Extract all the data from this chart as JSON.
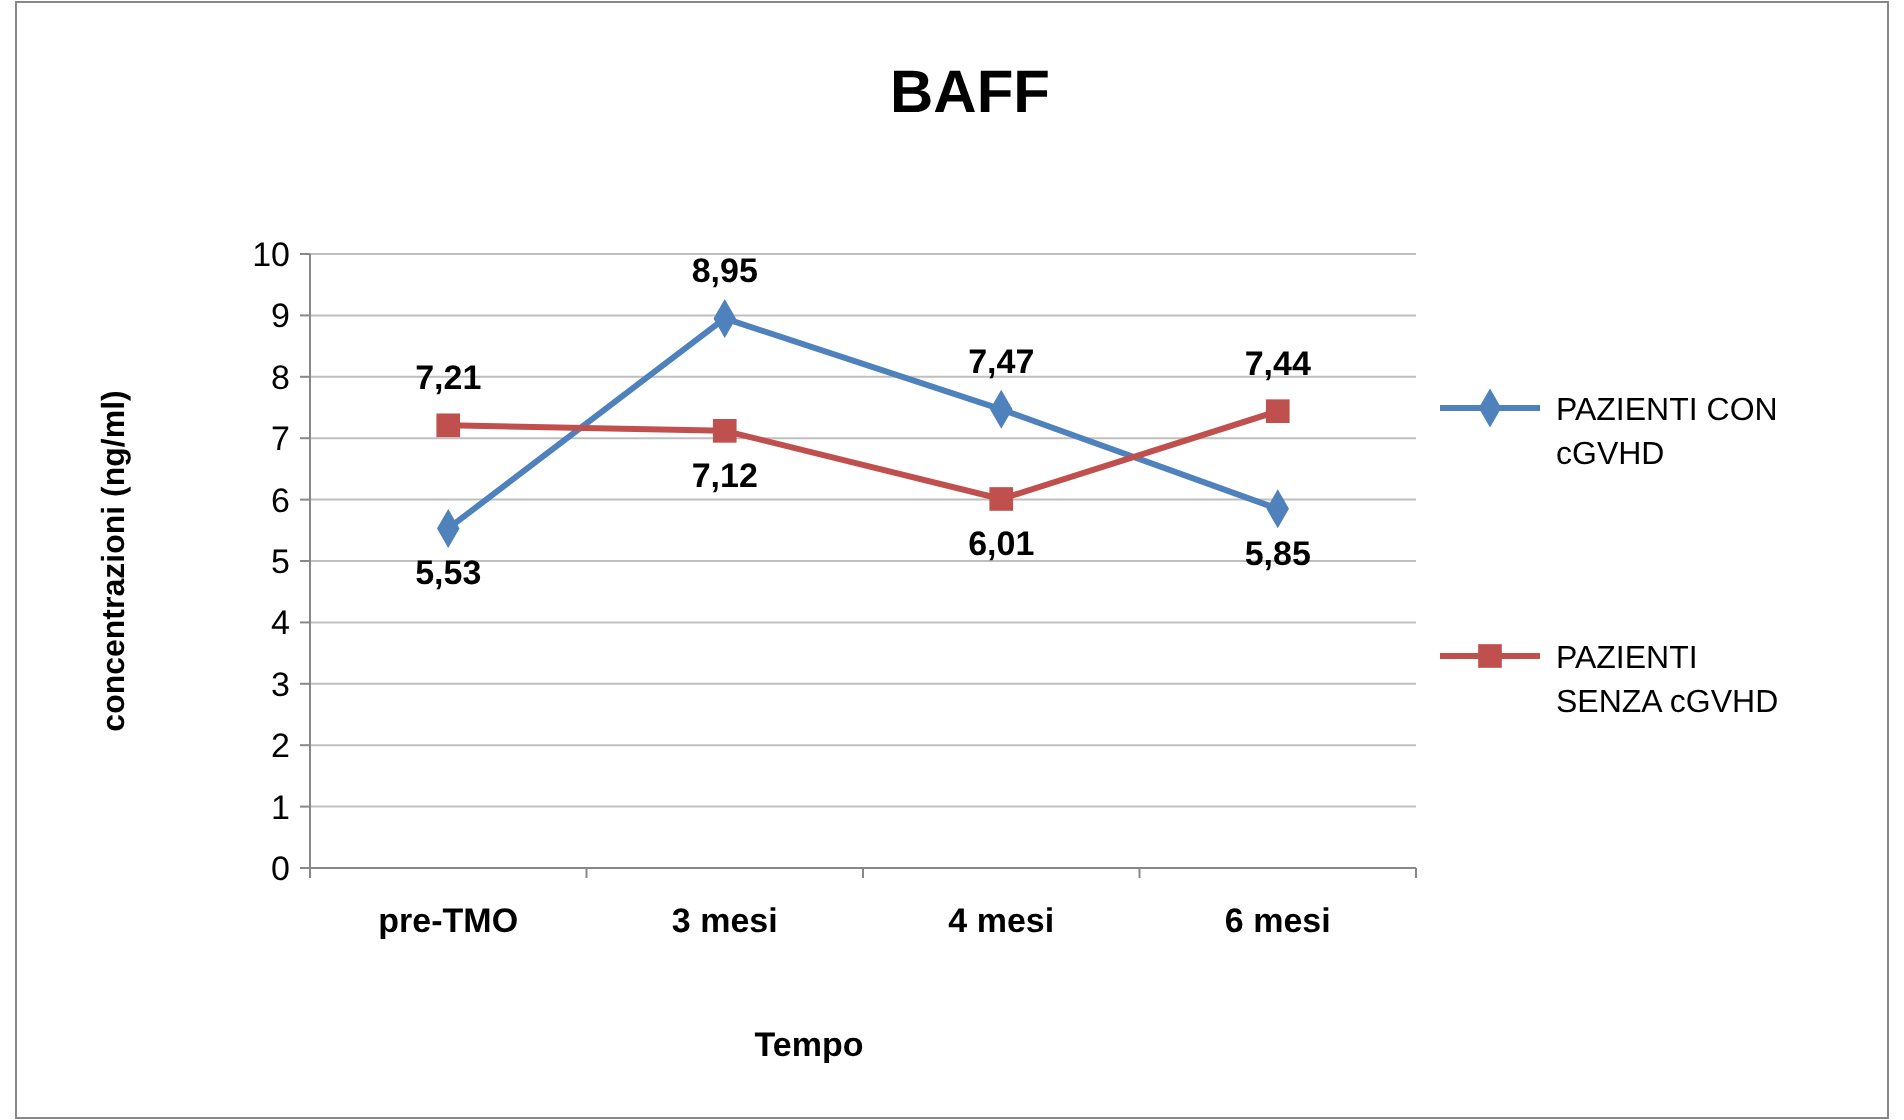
{
  "chart_data": {
    "type": "line",
    "title": "BAFF",
    "xlabel": "Tempo",
    "ylabel": "concentrazioni (ng/ml)",
    "categories": [
      "pre-TMO",
      "3 mesi",
      "4 mesi",
      "6 mesi"
    ],
    "series": [
      {
        "name": "PAZIENTI CON cGVHD",
        "color": "#4f81bd",
        "marker": "diamond",
        "values": [
          5.53,
          8.95,
          7.47,
          5.85
        ],
        "value_labels": [
          "5,53",
          "8,95",
          "7,47",
          "5,85"
        ]
      },
      {
        "name": "PAZIENTI SENZA cGVHD",
        "color": "#c0504d",
        "marker": "square",
        "values": [
          7.21,
          7.12,
          6.01,
          7.44
        ],
        "value_labels": [
          "7,21",
          "7,12",
          "6,01",
          "7,44"
        ]
      }
    ],
    "ylim": [
      0,
      10
    ],
    "yticks": [
      0,
      1,
      2,
      3,
      4,
      5,
      6,
      7,
      8,
      9,
      10
    ],
    "grid": "y",
    "legend": "right"
  }
}
